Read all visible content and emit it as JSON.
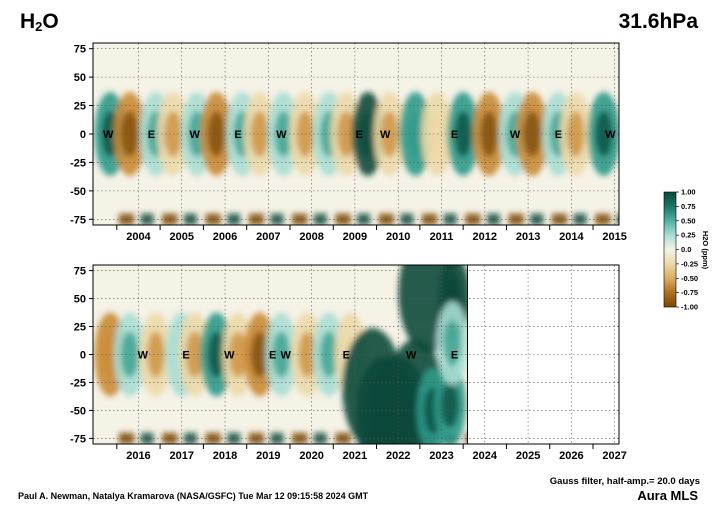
{
  "header": {
    "species_main": "H",
    "species_sub": "2",
    "species_tail": "O",
    "level": "31.6hPa"
  },
  "footer": {
    "credit": "Paul A. Newman, Natalya Kramarova (NASA/GSFC) Tue Mar 12 09:15:58 2024 GMT",
    "filter_note": "Gauss filter, half-amp.= 20.0 days",
    "instrument": "Aura MLS"
  },
  "colors": {
    "positive_dark": "#0a4a3c",
    "positive_mid": "#2f9a8a",
    "positive_light": "#a9ddd3",
    "neutral": "#f5f2e6",
    "negative_light": "#ecd9a8",
    "negative_mid": "#c98a34",
    "negative_dark": "#7a4505"
  },
  "chart_data": [
    {
      "type": "heatmap",
      "panel": "top",
      "title": "",
      "xlabel": "",
      "ylabel": "",
      "x_tick_labels": [
        "2004",
        "2005",
        "2006",
        "2007",
        "2008",
        "2009",
        "2010",
        "2011",
        "2012",
        "2013",
        "2014",
        "2015"
      ],
      "y_tick_labels": [
        "75",
        "50",
        "25",
        "0",
        "-25",
        "-50",
        "-75"
      ],
      "ylim": [
        -80,
        80
      ],
      "y_ticks": [
        75,
        50,
        25,
        0,
        -25,
        -50,
        -75
      ],
      "grid": true,
      "annotations": [
        {
          "text": "W",
          "x": 2003.8,
          "y": 0
        },
        {
          "text": "E",
          "x": 2004.8,
          "y": 0
        },
        {
          "text": "W",
          "x": 2005.8,
          "y": 0
        },
        {
          "text": "E",
          "x": 2006.8,
          "y": 0
        },
        {
          "text": "W",
          "x": 2007.8,
          "y": 0
        },
        {
          "text": "E",
          "x": 2009.6,
          "y": 0
        },
        {
          "text": "W",
          "x": 2010.2,
          "y": 0
        },
        {
          "text": "E",
          "x": 2011.8,
          "y": 0
        },
        {
          "text": "W",
          "x": 2013.2,
          "y": 0
        },
        {
          "text": "E",
          "x": 2014.2,
          "y": 0
        },
        {
          "text": "W",
          "x": 2015.4,
          "y": 0
        }
      ],
      "anomaly_features": [
        {
          "x": 2003.85,
          "y": 0,
          "v": 0.55
        },
        {
          "x": 2004.3,
          "y": 0,
          "v": -0.5
        },
        {
          "x": 2004.9,
          "y": 0,
          "v": 0.35
        },
        {
          "x": 2005.3,
          "y": 0,
          "v": -0.35
        },
        {
          "x": 2005.85,
          "y": 0,
          "v": 0.3
        },
        {
          "x": 2006.3,
          "y": 0,
          "v": -0.55
        },
        {
          "x": 2006.9,
          "y": 0,
          "v": 0.35
        },
        {
          "x": 2007.3,
          "y": 0,
          "v": -0.35
        },
        {
          "x": 2007.85,
          "y": 0,
          "v": 0.35
        },
        {
          "x": 2008.35,
          "y": 0,
          "v": -0.4
        },
        {
          "x": 2008.9,
          "y": 0,
          "v": 0.3
        },
        {
          "x": 2009.3,
          "y": 0,
          "v": -0.35
        },
        {
          "x": 2009.8,
          "y": 0,
          "v": 0.8
        },
        {
          "x": 2010.3,
          "y": 0,
          "v": -0.3
        },
        {
          "x": 2010.9,
          "y": 0,
          "v": 0.45
        },
        {
          "x": 2011.4,
          "y": 0,
          "v": -0.2
        },
        {
          "x": 2012.0,
          "y": 0,
          "v": 0.5
        },
        {
          "x": 2012.6,
          "y": 0,
          "v": -0.55
        },
        {
          "x": 2013.2,
          "y": 0,
          "v": 0.35
        },
        {
          "x": 2013.6,
          "y": 0,
          "v": -0.75
        },
        {
          "x": 2014.2,
          "y": 0,
          "v": 0.35
        },
        {
          "x": 2014.6,
          "y": 0,
          "v": -0.3
        },
        {
          "x": 2015.25,
          "y": 0,
          "v": 0.6
        }
      ]
    },
    {
      "type": "heatmap",
      "panel": "bottom",
      "title": "",
      "xlabel": "",
      "ylabel": "",
      "x_tick_labels": [
        "2016",
        "2017",
        "2018",
        "2019",
        "2020",
        "2021",
        "2022",
        "2023",
        "2024",
        "2025",
        "2026",
        "2027"
      ],
      "y_tick_labels": [
        "75",
        "50",
        "25",
        "0",
        "-25",
        "-50",
        "-75"
      ],
      "ylim": [
        -80,
        80
      ],
      "y_ticks": [
        75,
        50,
        25,
        0,
        -25,
        -50,
        -75
      ],
      "grid": true,
      "data_end": 2024.1,
      "annotations": [
        {
          "text": "W",
          "x": 2016.6,
          "y": 0
        },
        {
          "text": "E",
          "x": 2017.6,
          "y": 0
        },
        {
          "text": "W",
          "x": 2018.6,
          "y": 0
        },
        {
          "text": "E",
          "x": 2019.6,
          "y": 0
        },
        {
          "text": "W",
          "x": 2019.9,
          "y": 0
        },
        {
          "text": "E",
          "x": 2021.3,
          "y": 0
        },
        {
          "text": "W",
          "x": 2022.8,
          "y": 0
        },
        {
          "text": "E",
          "x": 2023.8,
          "y": 0
        }
      ],
      "anomaly_features": [
        {
          "x": 2015.85,
          "y": 0,
          "v": -0.45
        },
        {
          "x": 2016.3,
          "y": 0,
          "v": 0.35
        },
        {
          "x": 2016.9,
          "y": 0,
          "v": -0.35
        },
        {
          "x": 2017.5,
          "y": 0,
          "v": 0.2
        },
        {
          "x": 2017.8,
          "y": 0,
          "v": -0.3
        },
        {
          "x": 2018.3,
          "y": 0,
          "v": 0.6
        },
        {
          "x": 2018.8,
          "y": 0,
          "v": -0.3
        },
        {
          "x": 2019.3,
          "y": 0,
          "v": -0.55
        },
        {
          "x": 2019.8,
          "y": 0,
          "v": 0.35
        },
        {
          "x": 2020.4,
          "y": 0,
          "v": -0.3
        },
        {
          "x": 2020.9,
          "y": 0,
          "v": 0.3
        },
        {
          "x": 2021.4,
          "y": 0,
          "v": -0.2
        },
        {
          "x": 2021.9,
          "y": -30,
          "v": 1.0
        },
        {
          "x": 2022.2,
          "y": -55,
          "v": 1.0
        },
        {
          "x": 2022.5,
          "y": -55,
          "v": 1.0
        },
        {
          "x": 2022.9,
          "y": -40,
          "v": 0.9
        },
        {
          "x": 2023.2,
          "y": 55,
          "v": 0.9
        },
        {
          "x": 2023.3,
          "y": -50,
          "v": 0.7
        },
        {
          "x": 2023.7,
          "y": -45,
          "v": 0.6
        },
        {
          "x": 2023.8,
          "y": 50,
          "v": 0.8
        },
        {
          "x": 2023.75,
          "y": 10,
          "v": 0.4
        }
      ]
    }
  ],
  "colorbar": {
    "label": "H2O (ppm)",
    "range": [
      -1,
      1
    ],
    "tick_labels": [
      "1.00",
      "0.75",
      "0.50",
      "0.25",
      "0.0",
      "-0.25",
      "-0.50",
      "-0.75",
      "-1.00"
    ]
  }
}
